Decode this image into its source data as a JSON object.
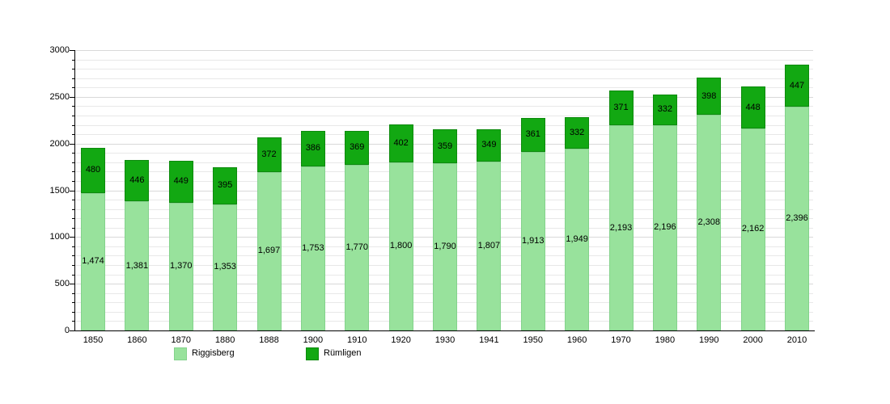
{
  "chart_data": {
    "type": "bar",
    "stacked": true,
    "title": "",
    "xlabel": "",
    "ylabel": "",
    "categories": [
      "1850",
      "1860",
      "1870",
      "1880",
      "1888",
      "1900",
      "1910",
      "1920",
      "1930",
      "1941",
      "1950",
      "1960",
      "1970",
      "1980",
      "1990",
      "2000",
      "2010"
    ],
    "series": [
      {
        "name": "Riggisberg",
        "color": "#98e29c",
        "values": [
          1474,
          1381,
          1370,
          1353,
          1697,
          1753,
          1770,
          1800,
          1790,
          1807,
          1913,
          1949,
          2193,
          2196,
          2308,
          2162,
          2396
        ]
      },
      {
        "name": "Rümligen",
        "color": "#12a812",
        "values": [
          480,
          446,
          449,
          395,
          372,
          386,
          369,
          402,
          359,
          349,
          361,
          332,
          371,
          332,
          398,
          448,
          447
        ]
      }
    ],
    "ylim": [
      0,
      3000
    ],
    "yticks": [
      0,
      500,
      1000,
      1500,
      2000,
      2500,
      3000
    ],
    "minor_tick_step": 100,
    "grid": true,
    "grid_step": 100,
    "legend_position": "bottom",
    "value_labels": "inside-center",
    "value_label_format": "thousands-comma"
  }
}
